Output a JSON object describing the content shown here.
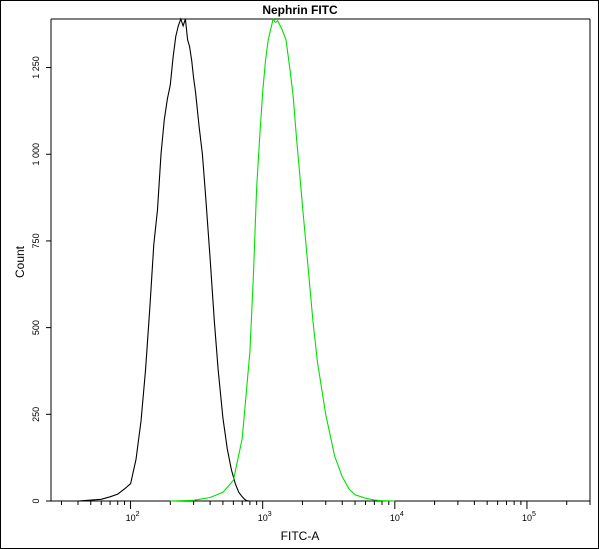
{
  "chart_data": {
    "type": "line",
    "title": "Nephrin FITC",
    "xlabel": "FITC-A",
    "ylabel": "Count",
    "x_scale": "log",
    "xlim": [
      25,
      300000
    ],
    "ylim": [
      0,
      1390
    ],
    "grid": false,
    "x_tick_labels": [
      {
        "base": "10",
        "exp": "2",
        "value": 100
      },
      {
        "base": "10",
        "exp": "3",
        "value": 1000
      },
      {
        "base": "10",
        "exp": "4",
        "value": 10000
      },
      {
        "base": "10",
        "exp": "5",
        "value": 100000
      }
    ],
    "y_ticks": [
      0,
      250,
      500,
      750,
      1000,
      1250
    ],
    "y_tick_labels": [
      "0",
      "250",
      "500",
      "750",
      "1 000",
      "1 250"
    ],
    "series": [
      {
        "color": "#000000",
        "x": [
          40,
          60,
          70,
          80,
          90,
          100,
          110,
          120,
          130,
          140,
          150,
          160,
          170,
          180,
          190,
          200,
          210,
          220,
          230,
          240,
          250,
          260,
          270,
          280,
          290,
          300,
          310,
          330,
          350,
          370,
          400,
          430,
          460,
          500,
          540,
          580,
          620,
          660,
          700,
          730,
          760,
          800
        ],
        "y": [
          0,
          5,
          12,
          20,
          35,
          50,
          120,
          230,
          380,
          560,
          740,
          840,
          1000,
          1100,
          1160,
          1200,
          1280,
          1340,
          1370,
          1390,
          1370,
          1390,
          1330,
          1310,
          1270,
          1220,
          1180,
          1080,
          1000,
          880,
          700,
          520,
          380,
          240,
          150,
          90,
          50,
          25,
          12,
          5,
          1,
          0
        ]
      },
      {
        "color": "#00e000",
        "x": [
          200,
          300,
          400,
          500,
          600,
          700,
          800,
          850,
          900,
          950,
          1000,
          1050,
          1100,
          1150,
          1200,
          1250,
          1300,
          1400,
          1500,
          1600,
          1700,
          1800,
          1900,
          2000,
          2200,
          2400,
          2600,
          3000,
          3500,
          4000,
          4500,
          5000,
          6000,
          7000,
          8000,
          10000
        ],
        "y": [
          0,
          2,
          10,
          25,
          60,
          180,
          430,
          650,
          900,
          1050,
          1180,
          1270,
          1330,
          1360,
          1390,
          1380,
          1385,
          1360,
          1330,
          1250,
          1170,
          1050,
          950,
          850,
          680,
          520,
          400,
          250,
          130,
          70,
          35,
          18,
          8,
          3,
          1,
          0
        ]
      }
    ]
  }
}
